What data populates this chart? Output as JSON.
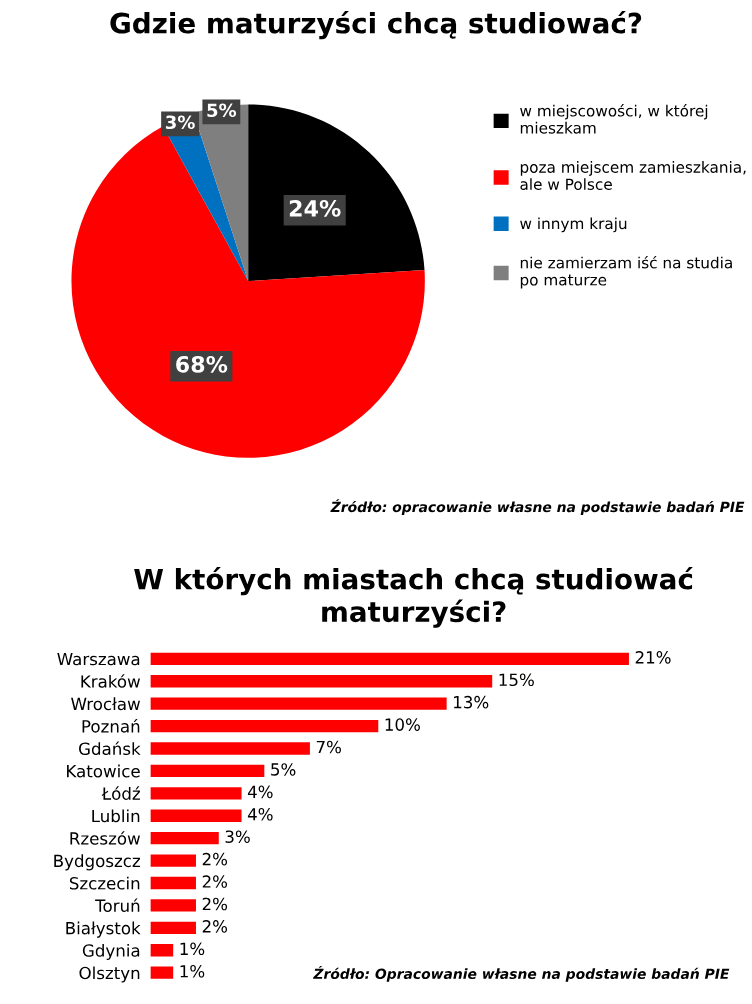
{
  "chart_data": [
    {
      "type": "pie",
      "title": "Gdzie maturzyści chcą studiować?",
      "categories": [
        "w miejscowości, w której mieszkam",
        "poza miejscem zamieszkania, ale w Polsce",
        "w innym kraju",
        "nie zamierzam iść na studia po maturze"
      ],
      "values": [
        24,
        68,
        3,
        5
      ],
      "colors": [
        "#000000",
        "#ff0000",
        "#0070c0",
        "#7f7f7f"
      ],
      "value_labels": [
        "24%",
        "68%",
        "3%",
        "5%"
      ],
      "legend": "right",
      "annotations": [
        "Źródło: opracowanie własne na podstawie badań PIE"
      ]
    },
    {
      "type": "bar",
      "orientation": "horizontal",
      "title": "W których miastach chcą studiować maturzyści?",
      "categories": [
        "Warszawa",
        "Kraków",
        "Wrocław",
        "Poznań",
        "Gdańsk",
        "Katowice",
        "Łódź",
        "Lublin",
        "Rzeszów",
        "Bydgoszcz",
        "Szczecin",
        "Toruń",
        "Białystok",
        "Gdynia",
        "Olsztyn"
      ],
      "values": [
        21,
        15,
        13,
        10,
        7,
        5,
        4,
        4,
        3,
        2,
        2,
        2,
        2,
        1,
        1
      ],
      "color": "#ff0000",
      "value_labels": [
        "21%",
        "15%",
        "13%",
        "10%",
        "7%",
        "5%",
        "4%",
        "4%",
        "3%",
        "2%",
        "2%",
        "2%",
        "2%",
        "1%",
        "1%"
      ],
      "annotations": [
        "Źródło: Opracowanie własne na podstawie badań PIE"
      ]
    }
  ]
}
